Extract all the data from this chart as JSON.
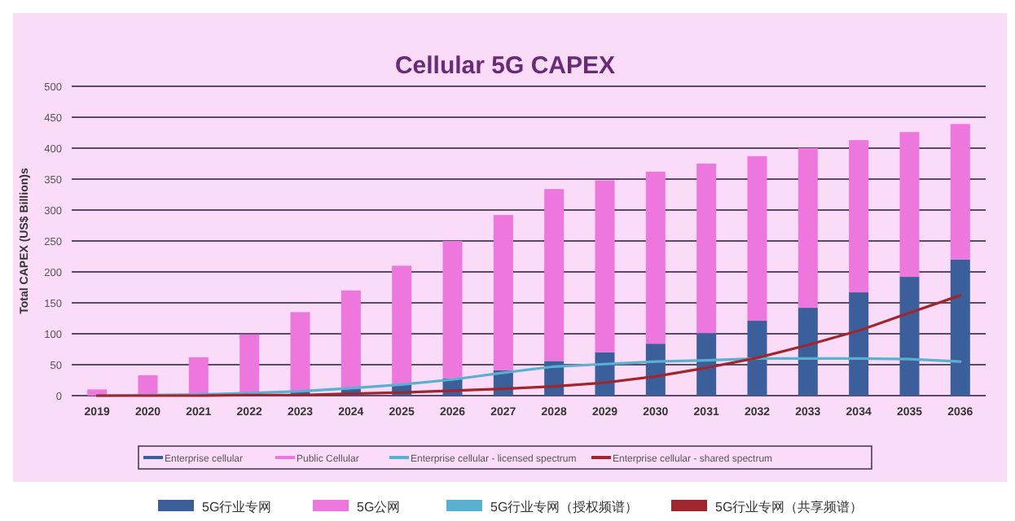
{
  "chart_data": {
    "type": "bar",
    "title": "Cellular 5G CAPEX",
    "ylabel": "Total CAPEX (US$ Billion)s",
    "categories": [
      "2019",
      "2020",
      "2021",
      "2022",
      "2023",
      "2024",
      "2025",
      "2026",
      "2027",
      "2028",
      "2029",
      "2030",
      "2031",
      "2032",
      "2033",
      "2034",
      "2035",
      "2036"
    ],
    "stacked": true,
    "series": [
      {
        "name": "Enterprise cellular",
        "color": "#3a5f9a",
        "values": [
          0,
          1,
          2,
          null,
          7,
          12,
          18,
          28,
          41,
          56,
          70,
          84,
          101,
          121,
          142,
          167,
          192,
          220
        ]
      },
      {
        "name": "Public Cellular",
        "color": "#ee77dd",
        "values": [
          10,
          32,
          60,
          99,
          128,
          158,
          192,
          222,
          251,
          278,
          278,
          278,
          274,
          266,
          258,
          246,
          234,
          219
        ]
      },
      {
        "name": "Enterprise cellular - licensed spectrum",
        "type": "line",
        "color": "#5ab0d0",
        "values": [
          0,
          1,
          2,
          4,
          7,
          12,
          18,
          26,
          37,
          47,
          51,
          55,
          57,
          60,
          60,
          60,
          59,
          55
        ]
      },
      {
        "name": "Enterprise cellular - shared spectrum",
        "type": "line",
        "color": "#a0262e",
        "values": [
          0,
          0,
          0,
          1,
          1,
          3,
          5,
          8,
          11,
          15,
          21,
          31,
          45,
          61,
          82,
          105,
          134,
          162
        ]
      }
    ],
    "ylim": [
      0,
      500
    ],
    "yticks": [
      0,
      50,
      100,
      150,
      200,
      250,
      300,
      350,
      400,
      450,
      500
    ],
    "grid": "y",
    "legend": "bottom",
    "annotations": [
      "5G行业专网",
      "5G公网",
      "5G行业专网（授权频谱）",
      "5G行业专网（共享频谱）"
    ]
  }
}
